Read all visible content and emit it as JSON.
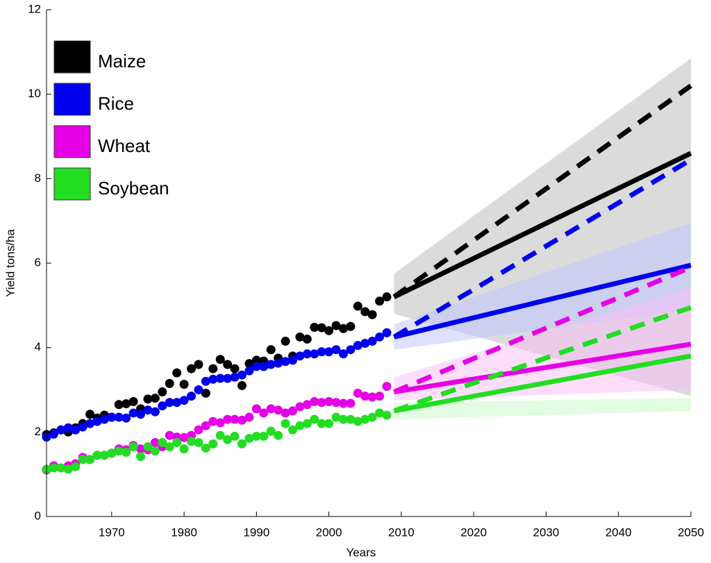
{
  "chart_data": {
    "type": "scatter",
    "xlabel": "Years",
    "ylabel": "Yield tons/ha",
    "xlim": [
      1961,
      2050
    ],
    "ylim": [
      0,
      12
    ],
    "xticks": [
      1970,
      1980,
      1990,
      2000,
      2010,
      2020,
      2030,
      2040,
      2050
    ],
    "yticks": [
      0,
      2,
      4,
      6,
      8,
      10,
      12
    ],
    "legend": "upper-left",
    "x": [
      1961,
      1962,
      1963,
      1964,
      1965,
      1966,
      1967,
      1968,
      1969,
      1970,
      1971,
      1972,
      1973,
      1974,
      1975,
      1976,
      1977,
      1978,
      1979,
      1980,
      1981,
      1982,
      1983,
      1984,
      1985,
      1986,
      1987,
      1988,
      1989,
      1990,
      1991,
      1992,
      1993,
      1994,
      1995,
      1996,
      1997,
      1998,
      1999,
      2000,
      2001,
      2002,
      2003,
      2004,
      2005,
      2006,
      2007,
      2008
    ],
    "trend_x": [
      2009,
      2050
    ],
    "series": [
      {
        "name": "Maize",
        "color": "#000000",
        "band_color": "rgba(190,190,190,0.55)",
        "values": [
          1.94,
          1.98,
          2.05,
          2.0,
          2.1,
          2.2,
          2.42,
          2.33,
          2.4,
          2.35,
          2.65,
          2.67,
          2.72,
          2.55,
          2.78,
          2.8,
          2.95,
          3.15,
          3.4,
          3.13,
          3.5,
          3.6,
          2.92,
          3.5,
          3.72,
          3.6,
          3.5,
          3.1,
          3.62,
          3.7,
          3.68,
          3.95,
          3.75,
          4.15,
          3.8,
          4.25,
          4.2,
          4.48,
          4.47,
          4.4,
          4.52,
          4.45,
          4.5,
          4.98,
          4.85,
          4.78,
          5.1,
          5.2
        ],
        "trend": [
          5.2,
          8.6
        ],
        "dashed": [
          5.2,
          10.2
        ],
        "band_lower": [
          4.8,
          2.85
        ],
        "band_upper": [
          5.75,
          10.85
        ]
      },
      {
        "name": "Rice",
        "color": "#0000ee",
        "band_color": "rgba(190,195,255,0.5)",
        "values": [
          1.88,
          1.95,
          2.05,
          2.1,
          2.05,
          2.12,
          2.2,
          2.25,
          2.3,
          2.35,
          2.35,
          2.33,
          2.45,
          2.42,
          2.52,
          2.48,
          2.62,
          2.7,
          2.7,
          2.75,
          2.85,
          3.0,
          3.2,
          3.25,
          3.27,
          3.27,
          3.3,
          3.35,
          3.45,
          3.55,
          3.55,
          3.6,
          3.63,
          3.67,
          3.7,
          3.8,
          3.85,
          3.85,
          3.9,
          3.9,
          3.95,
          3.85,
          3.95,
          4.05,
          4.1,
          4.15,
          4.25,
          4.35
        ],
        "trend": [
          4.25,
          5.95
        ],
        "dashed": [
          4.25,
          8.45
        ],
        "band_lower": [
          3.95,
          4.9
        ],
        "band_upper": [
          4.55,
          6.95
        ]
      },
      {
        "name": "Wheat",
        "color": "#e600e6",
        "band_color": "rgba(250,190,250,0.5)",
        "values": [
          1.1,
          1.2,
          1.15,
          1.2,
          1.25,
          1.4,
          1.35,
          1.45,
          1.45,
          1.5,
          1.6,
          1.58,
          1.68,
          1.6,
          1.58,
          1.75,
          1.65,
          1.92,
          1.88,
          1.87,
          1.92,
          2.05,
          2.15,
          2.25,
          2.22,
          2.3,
          2.3,
          2.28,
          2.35,
          2.55,
          2.45,
          2.55,
          2.52,
          2.45,
          2.5,
          2.6,
          2.65,
          2.72,
          2.7,
          2.72,
          2.7,
          2.68,
          2.68,
          2.92,
          2.85,
          2.83,
          2.85,
          3.08
        ],
        "trend": [
          2.95,
          4.08
        ],
        "dashed": [
          2.95,
          5.9
        ],
        "band_lower": [
          2.75,
          3.0
        ],
        "band_upper": [
          3.3,
          5.4
        ]
      },
      {
        "name": "Soybean",
        "color": "#22dd22",
        "band_color": "rgba(200,250,200,0.55)",
        "values": [
          1.12,
          1.15,
          1.15,
          1.12,
          1.18,
          1.35,
          1.35,
          1.45,
          1.45,
          1.5,
          1.55,
          1.52,
          1.65,
          1.42,
          1.65,
          1.55,
          1.75,
          1.65,
          1.75,
          1.6,
          1.78,
          1.75,
          1.62,
          1.72,
          1.92,
          1.82,
          1.9,
          1.72,
          1.85,
          1.9,
          1.9,
          2.02,
          1.92,
          2.2,
          2.05,
          2.15,
          2.2,
          2.3,
          2.2,
          2.2,
          2.35,
          2.3,
          2.3,
          2.25,
          2.3,
          2.35,
          2.45,
          2.4
        ],
        "trend": [
          2.5,
          3.8
        ],
        "dashed": [
          2.5,
          4.95
        ],
        "band_lower": [
          2.3,
          2.5
        ],
        "band_upper": [
          2.7,
          2.8
        ]
      }
    ]
  }
}
